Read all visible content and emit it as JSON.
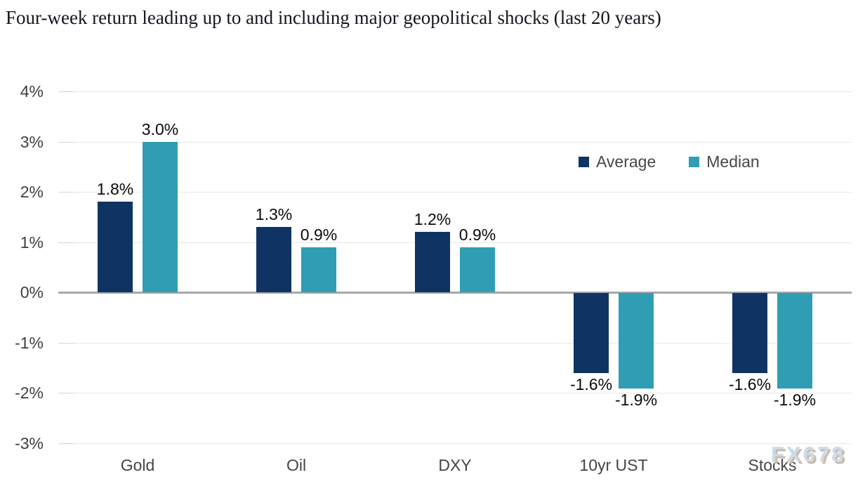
{
  "page": {
    "title": "Four-week return leading up to and including major geopolitical shocks (last 20 years)",
    "watermark": "FX678"
  },
  "chart_data": {
    "type": "bar",
    "title": "Four-week return leading up to and including major geopolitical shocks (last 20 years)",
    "categories": [
      "Gold",
      "Oil",
      "DXY",
      "10yr UST",
      "Stocks"
    ],
    "series": [
      {
        "name": "Average",
        "color": "#0f3464",
        "values": [
          1.8,
          1.3,
          1.2,
          -1.6,
          -1.6
        ],
        "labels": [
          "1.8%",
          "1.3%",
          "1.2%",
          "-1.6%",
          "-1.6%"
        ]
      },
      {
        "name": "Median",
        "color": "#2f9eb4",
        "values": [
          3.0,
          0.9,
          0.9,
          -1.9,
          -1.9
        ],
        "labels": [
          "3.0%",
          "0.9%",
          "0.9%",
          "-1.9%",
          "-1.9%"
        ]
      }
    ],
    "yticks": [
      {
        "value": 4,
        "label": "4%"
      },
      {
        "value": 3,
        "label": "3%"
      },
      {
        "value": 2,
        "label": "2%"
      },
      {
        "value": 1,
        "label": "1%"
      },
      {
        "value": 0,
        "label": "0%"
      },
      {
        "value": -1,
        "label": "-1%"
      },
      {
        "value": -2,
        "label": "-2%"
      },
      {
        "value": -3,
        "label": "-3%"
      }
    ],
    "ylim": [
      -3,
      4
    ],
    "xlabel": "",
    "ylabel": "",
    "grid": "horizontal",
    "legend_position": "upper-right-inside",
    "colors": {
      "grid": "#e7e7e7",
      "zero_line": "#a8a8a8",
      "axis_text": "#3f3f3f",
      "category_text": "#454545",
      "data_label": "#0a0a0a",
      "legend_text": "#474747",
      "watermark_fill": "#cadbeb",
      "watermark_shadow": "#cdbba6"
    }
  }
}
